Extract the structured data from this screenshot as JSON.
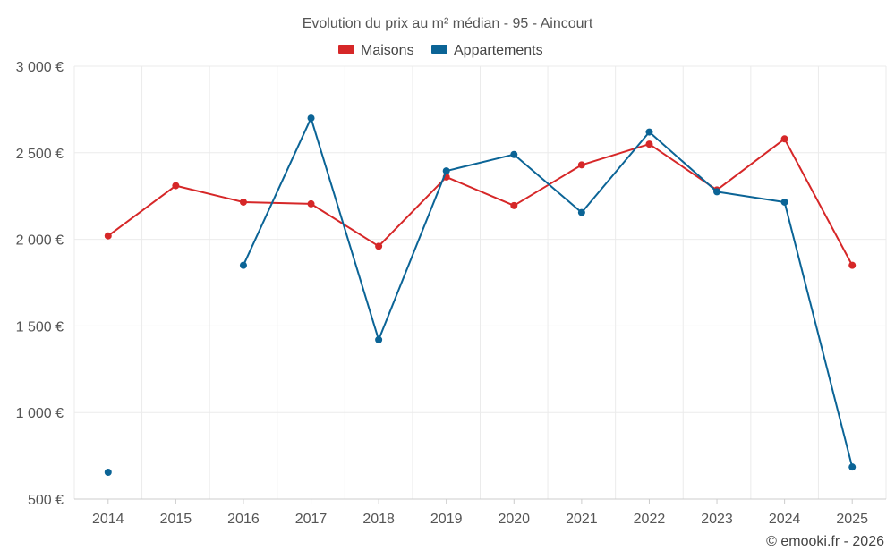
{
  "chart_data": {
    "type": "line",
    "title": "Evolution du prix au m² médian - 95 - Aincourt",
    "xlabel": "",
    "ylabel": "",
    "categories": [
      "2014",
      "2015",
      "2016",
      "2017",
      "2018",
      "2019",
      "2020",
      "2021",
      "2022",
      "2023",
      "2024",
      "2025"
    ],
    "y_ticks": [
      500,
      1000,
      1500,
      2000,
      2500,
      3000
    ],
    "y_tick_labels": [
      "500 €",
      "1 000 €",
      "1 500 €",
      "2 000 €",
      "2 500 €",
      "3 000 €"
    ],
    "ylim": [
      500,
      3000
    ],
    "grid": true,
    "legend_position": "top-center",
    "series": [
      {
        "name": "Maisons",
        "color": "#d62728",
        "values": [
          2020,
          2310,
          2215,
          2205,
          1960,
          2360,
          2195,
          2430,
          2550,
          2285,
          2580,
          1850
        ]
      },
      {
        "name": "Appartements",
        "color": "#0b6496",
        "values": [
          655,
          null,
          1850,
          2700,
          1420,
          2395,
          2490,
          2155,
          2620,
          2275,
          2215,
          685
        ]
      }
    ]
  },
  "credit": "© emooki.fr - 2026"
}
